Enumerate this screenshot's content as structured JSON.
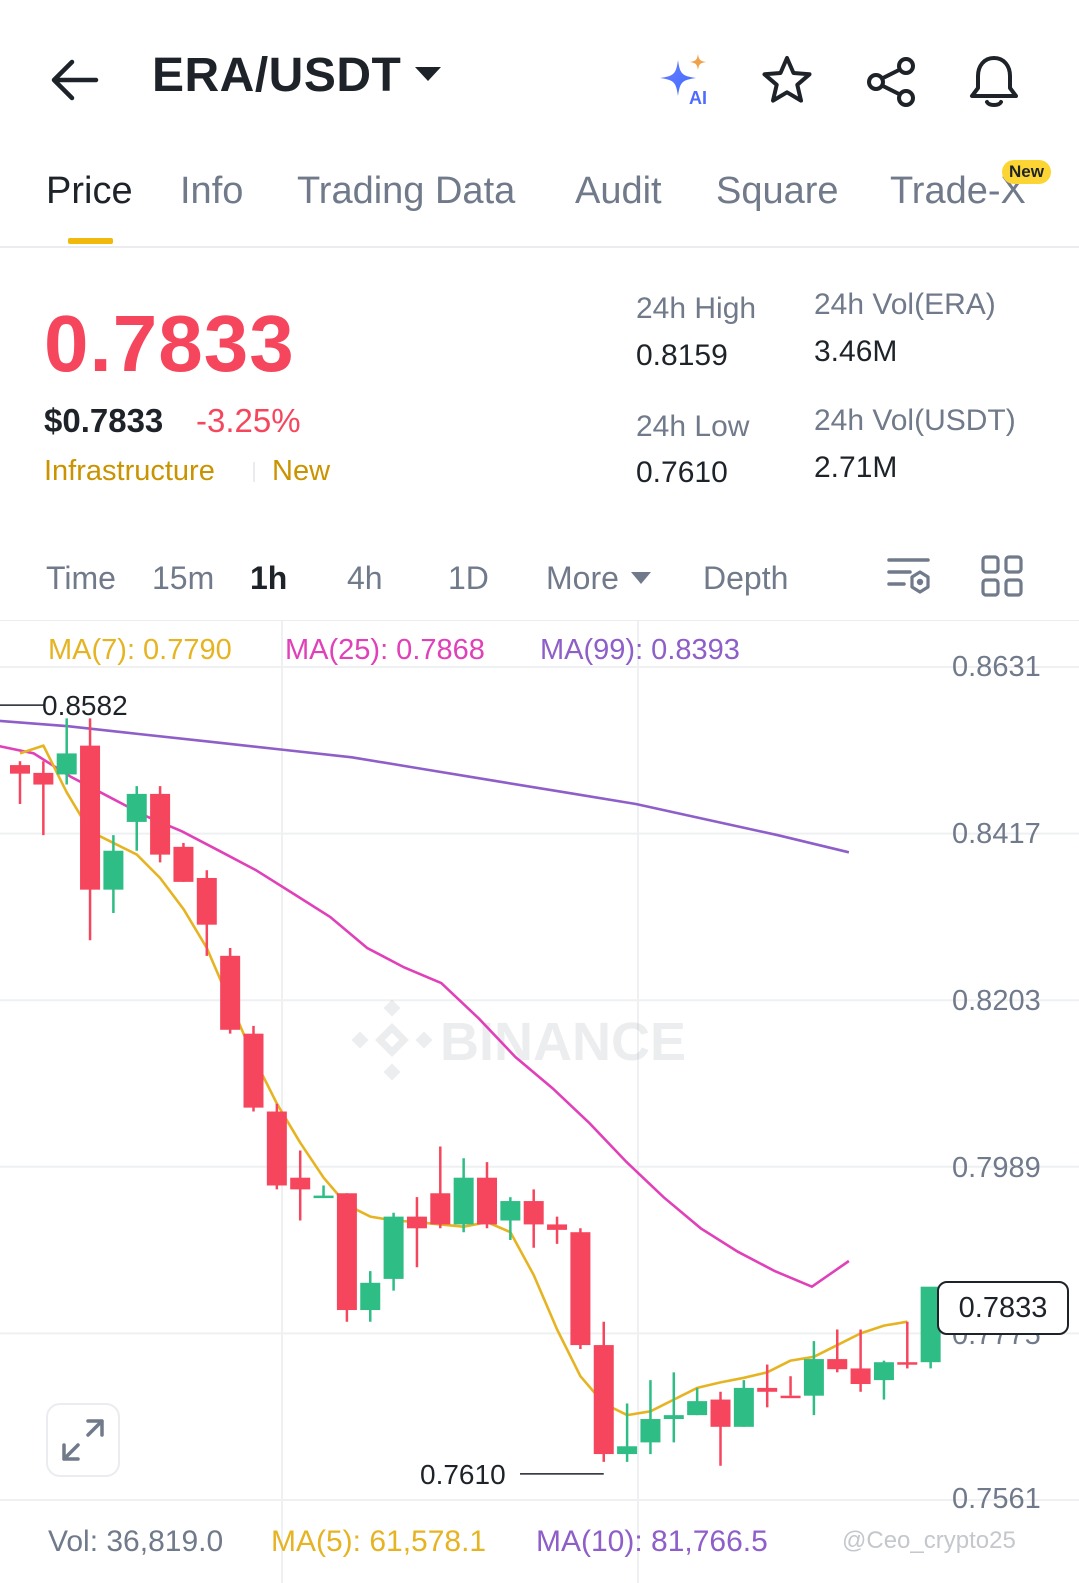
{
  "header": {
    "pair": "ERA/USDT",
    "ai_label": "AI"
  },
  "tabs": [
    {
      "label": "Price",
      "active": true
    },
    {
      "label": "Info"
    },
    {
      "label": "Trading Data"
    },
    {
      "label": "Audit"
    },
    {
      "label": "Square"
    },
    {
      "label": "Trade-X"
    }
  ],
  "tab_badge": "New",
  "ticker": {
    "price": "0.7833",
    "usd_price": "$0.7833",
    "change": "-3.25%",
    "tags": [
      "Infrastructure",
      "New"
    ],
    "high_label": "24h High",
    "high": "0.8159",
    "low_label": "24h Low",
    "low": "0.7610",
    "vol_era_label": "24h Vol(ERA)",
    "vol_era": "3.46M",
    "vol_usdt_label": "24h Vol(USDT)",
    "vol_usdt": "2.71M"
  },
  "timeframes": {
    "items": [
      "Time",
      "15m",
      "1h",
      "4h",
      "1D"
    ],
    "active": "1h",
    "more": "More",
    "depth": "Depth"
  },
  "indicators": {
    "ma7": "MA(7): 0.7790",
    "ma25": "MA(25): 0.7868",
    "ma99": "MA(99): 0.8393"
  },
  "colors": {
    "up": "#2ebd85",
    "down": "#f6465d",
    "ma7": "#e6b422",
    "ma25": "#e040b8",
    "ma99": "#8e5ec9",
    "accent": "#f0b90b"
  },
  "chart_data": {
    "type": "candlestick",
    "interval": "1h",
    "y_ticks": [
      "0.8631",
      "0.8417",
      "0.8203",
      "0.7989",
      "0.7775",
      "0.7561"
    ],
    "ylim": [
      0.7561,
      0.8631
    ],
    "high_label": "0.8582",
    "low_label": "0.7610",
    "current_price": "0.7833",
    "candles": [
      {
        "o": 0.8505,
        "h": 0.851,
        "l": 0.8455,
        "c": 0.8494
      },
      {
        "o": 0.8495,
        "h": 0.851,
        "l": 0.8415,
        "c": 0.848
      },
      {
        "o": 0.8493,
        "h": 0.8565,
        "l": 0.848,
        "c": 0.852
      },
      {
        "o": 0.853,
        "h": 0.8565,
        "l": 0.828,
        "c": 0.8345
      },
      {
        "o": 0.8345,
        "h": 0.8415,
        "l": 0.8315,
        "c": 0.8395
      },
      {
        "o": 0.8432,
        "h": 0.8478,
        "l": 0.8395,
        "c": 0.8468
      },
      {
        "o": 0.8468,
        "h": 0.8478,
        "l": 0.838,
        "c": 0.839
      },
      {
        "o": 0.84,
        "h": 0.8405,
        "l": 0.8355,
        "c": 0.8355
      },
      {
        "o": 0.836,
        "h": 0.837,
        "l": 0.826,
        "c": 0.83
      },
      {
        "o": 0.826,
        "h": 0.827,
        "l": 0.816,
        "c": 0.8165
      },
      {
        "o": 0.816,
        "h": 0.817,
        "l": 0.806,
        "c": 0.8065
      },
      {
        "o": 0.806,
        "h": 0.807,
        "l": 0.796,
        "c": 0.7965
      },
      {
        "o": 0.7975,
        "h": 0.801,
        "l": 0.792,
        "c": 0.796
      },
      {
        "o": 0.795,
        "h": 0.7965,
        "l": 0.795,
        "c": 0.7952
      },
      {
        "o": 0.7955,
        "h": 0.7955,
        "l": 0.779,
        "c": 0.7805
      },
      {
        "o": 0.7805,
        "h": 0.7855,
        "l": 0.779,
        "c": 0.784
      },
      {
        "o": 0.7845,
        "h": 0.793,
        "l": 0.783,
        "c": 0.7925
      },
      {
        "o": 0.7925,
        "h": 0.795,
        "l": 0.786,
        "c": 0.791
      },
      {
        "o": 0.7955,
        "h": 0.8015,
        "l": 0.791,
        "c": 0.7915
      },
      {
        "o": 0.7915,
        "h": 0.8,
        "l": 0.7905,
        "c": 0.7975
      },
      {
        "o": 0.7975,
        "h": 0.7995,
        "l": 0.791,
        "c": 0.7915
      },
      {
        "o": 0.792,
        "h": 0.795,
        "l": 0.7895,
        "c": 0.7945
      },
      {
        "o": 0.7945,
        "h": 0.796,
        "l": 0.7885,
        "c": 0.7915
      },
      {
        "o": 0.7915,
        "h": 0.7925,
        "l": 0.789,
        "c": 0.7908
      },
      {
        "o": 0.7905,
        "h": 0.791,
        "l": 0.7755,
        "c": 0.776
      },
      {
        "o": 0.776,
        "h": 0.779,
        "l": 0.761,
        "c": 0.762
      },
      {
        "o": 0.762,
        "h": 0.7685,
        "l": 0.761,
        "c": 0.763
      },
      {
        "o": 0.7635,
        "h": 0.7715,
        "l": 0.762,
        "c": 0.7665
      },
      {
        "o": 0.7665,
        "h": 0.7725,
        "l": 0.7635,
        "c": 0.767
      },
      {
        "o": 0.767,
        "h": 0.7705,
        "l": 0.767,
        "c": 0.7688
      },
      {
        "o": 0.769,
        "h": 0.77,
        "l": 0.7605,
        "c": 0.7655
      },
      {
        "o": 0.7655,
        "h": 0.7715,
        "l": 0.7655,
        "c": 0.7705
      },
      {
        "o": 0.7705,
        "h": 0.7735,
        "l": 0.768,
        "c": 0.77
      },
      {
        "o": 0.7695,
        "h": 0.772,
        "l": 0.7695,
        "c": 0.7692
      },
      {
        "o": 0.7695,
        "h": 0.7765,
        "l": 0.767,
        "c": 0.7742
      },
      {
        "o": 0.7742,
        "h": 0.778,
        "l": 0.7725,
        "c": 0.7729
      },
      {
        "o": 0.773,
        "h": 0.778,
        "l": 0.77,
        "c": 0.771
      },
      {
        "o": 0.7715,
        "h": 0.774,
        "l": 0.769,
        "c": 0.7738
      },
      {
        "o": 0.7738,
        "h": 0.779,
        "l": 0.773,
        "c": 0.7735
      },
      {
        "o": 0.7738,
        "h": 0.783,
        "l": 0.773,
        "c": 0.7835
      }
    ],
    "ma7_line": [
      0.852,
      0.853,
      0.847,
      0.842,
      0.8405,
      0.839,
      0.836,
      0.832,
      0.827,
      0.82,
      0.813,
      0.807,
      0.802,
      0.7975,
      0.794,
      0.7925,
      0.792,
      0.7918,
      0.7915,
      0.7912,
      0.7918,
      0.7905,
      0.785,
      0.778,
      0.772,
      0.7685,
      0.767,
      0.7675,
      0.769,
      0.7705,
      0.7712,
      0.7718,
      0.7725,
      0.774,
      0.7745,
      0.776,
      0.7775,
      0.7785,
      0.779
    ],
    "ma25_line": [
      0.853,
      0.852,
      0.849,
      0.8465,
      0.844,
      0.842,
      0.8395,
      0.837,
      0.834,
      0.831,
      0.827,
      0.8245,
      0.8225,
      0.818,
      0.813,
      0.809,
      0.8045,
      0.7995,
      0.795,
      0.791,
      0.788,
      0.7855,
      0.7835,
      0.7868
    ],
    "ma99_line": [
      0.8562,
      0.8555,
      0.8545,
      0.8535,
      0.8525,
      0.8515,
      0.85,
      0.8485,
      0.847,
      0.8455,
      0.8435,
      0.8415,
      0.8393
    ],
    "volume": {
      "vol": "Vol: 36,819.0",
      "ma5": "MA(5): 61,578.1",
      "ma10": "MA(10): 81,766.5"
    }
  },
  "watermark": "@Ceo_crypto25",
  "brand_watermark": "BINANCE"
}
